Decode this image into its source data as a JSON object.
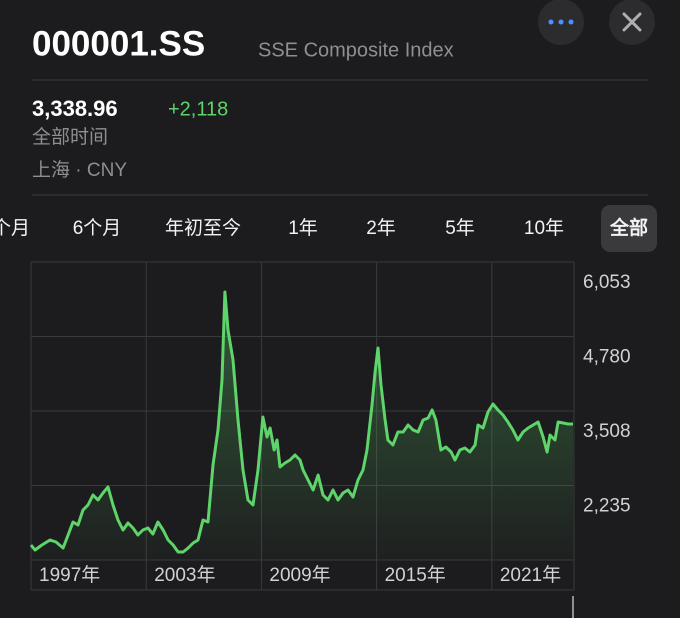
{
  "header": {
    "symbol": "000001.SS",
    "name": "SSE Composite Index",
    "price": "3,338.96",
    "change": "+2,118",
    "period": "全部时间",
    "exchange": "上海 · CNY"
  },
  "tabs": [
    "个月",
    "6个月",
    "年初至今",
    "1年",
    "2年",
    "5年",
    "10年",
    "全部"
  ],
  "chart_data": {
    "type": "area",
    "x": [
      1997.0,
      1997.21,
      1997.57,
      1997.99,
      1998.3,
      1998.67,
      1998.93,
      1999.19,
      1999.45,
      1999.71,
      1999.97,
      2000.23,
      2000.49,
      2000.75,
      2001.01,
      2001.27,
      2001.53,
      2001.79,
      2002.05,
      2002.31,
      2002.57,
      2002.83,
      2003.09,
      2003.35,
      2003.61,
      2003.88,
      2004.14,
      2004.4,
      2004.66,
      2004.92,
      2005.18,
      2005.44,
      2005.7,
      2005.96,
      2006.22,
      2006.48,
      2006.74,
      2006.95,
      2007.1,
      2007.26,
      2007.52,
      2007.78,
      2008.04,
      2008.3,
      2008.56,
      2008.82,
      2009.08,
      2009.29,
      2009.45,
      2009.66,
      2009.81,
      2009.97,
      2010.23,
      2010.49,
      2010.75,
      2011.01,
      2011.17,
      2011.43,
      2011.69,
      2011.95,
      2012.21,
      2012.47,
      2012.73,
      2012.99,
      2013.25,
      2013.51,
      2013.77,
      2014.03,
      2014.29,
      2014.5,
      2014.76,
      2014.92,
      2015.07,
      2015.23,
      2015.44,
      2015.59,
      2015.85,
      2016.11,
      2016.38,
      2016.64,
      2016.9,
      2017.16,
      2017.42,
      2017.68,
      2017.89,
      2018.09,
      2018.35,
      2018.61,
      2018.88,
      2019.08,
      2019.34,
      2019.6,
      2019.86,
      2020.13,
      2020.28,
      2020.54,
      2020.8,
      2021.06,
      2021.32,
      2021.58,
      2021.84,
      2022.1,
      2022.36,
      2022.63,
      2022.89,
      2023.15,
      2023.41,
      2023.67,
      2023.88,
      2024.03,
      2024.29,
      2024.45,
      2024.71,
      2024.97,
      2025.23
    ],
    "series": [
      {
        "color": "#5ed46b",
        "values": [
          1218,
          1133,
          1218,
          1304,
          1270,
          1167,
          1389,
          1611,
          1560,
          1816,
          1902,
          2072,
          1987,
          2107,
          2209,
          1902,
          1645,
          1475,
          1594,
          1509,
          1389,
          1475,
          1509,
          1406,
          1611,
          1475,
          1304,
          1218,
          1099,
          1099,
          1167,
          1252,
          1304,
          1645,
          1611,
          2585,
          3183,
          4037,
          5540,
          4891,
          4379,
          3354,
          2500,
          1987,
          1902,
          2500,
          3405,
          3063,
          3217,
          2841,
          3012,
          2551,
          2619,
          2670,
          2756,
          2670,
          2500,
          2329,
          2158,
          2414,
          2072,
          1987,
          2158,
          1987,
          2107,
          2158,
          2038,
          2329,
          2500,
          2841,
          3610,
          4174,
          4584,
          3952,
          3354,
          3012,
          2927,
          3149,
          3149,
          3268,
          3183,
          3149,
          3354,
          3388,
          3525,
          3354,
          2841,
          2892,
          2807,
          2670,
          2841,
          2875,
          2807,
          2927,
          3268,
          3217,
          3490,
          3627,
          3525,
          3439,
          3320,
          3183,
          3012,
          3149,
          3217,
          3268,
          3320,
          3063,
          2807,
          3097,
          3012,
          3320,
          3303,
          3285,
          3285
        ]
      }
    ],
    "xlim": [
      1997,
      2025.28
    ],
    "xticks": [
      {
        "value": 1997,
        "label": "1997年"
      },
      {
        "value": 2003,
        "label": "2003年"
      },
      {
        "value": 2009,
        "label": "2009年"
      },
      {
        "value": 2015,
        "label": "2015年"
      },
      {
        "value": 2021,
        "label": "2021年"
      }
    ],
    "ylim": [
      962,
      6053
    ],
    "yticks": [
      {
        "value": 6053,
        "label": "6,053"
      },
      {
        "value": 4780,
        "label": "4,780"
      },
      {
        "value": 3508,
        "label": "3,508"
      },
      {
        "value": 2235,
        "label": "2,235"
      }
    ],
    "grid": true
  }
}
